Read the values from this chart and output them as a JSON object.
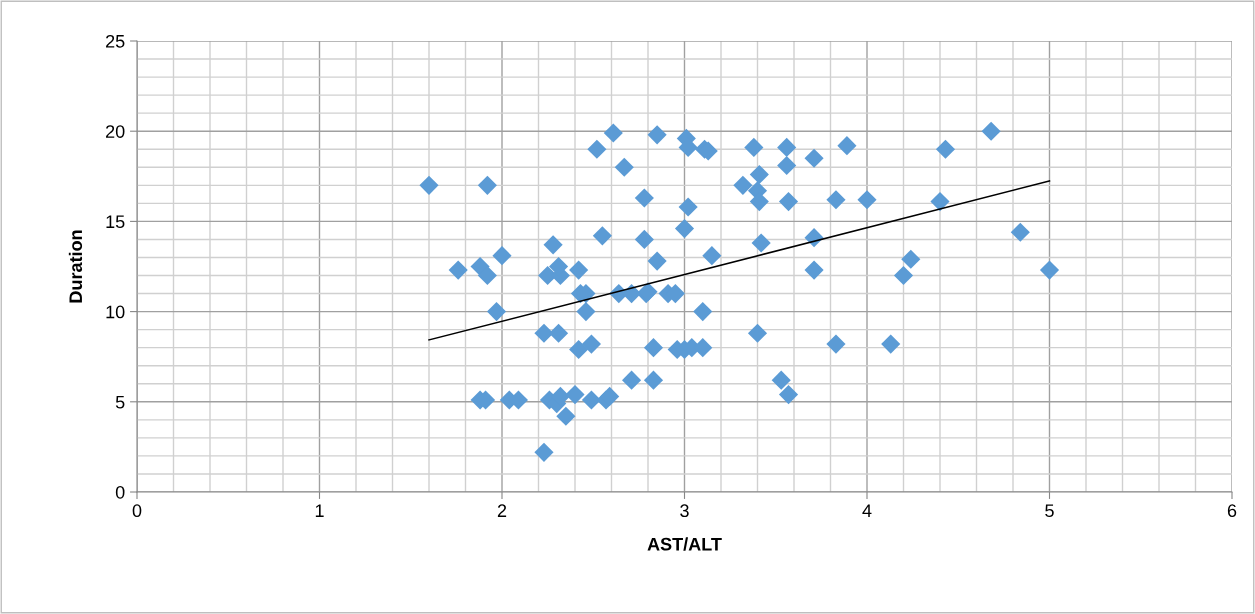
{
  "chart_data": {
    "type": "scatter",
    "xlabel": "AST/ALT",
    "ylabel": "Duration",
    "xlim": [
      0,
      6
    ],
    "ylim": [
      0,
      25
    ],
    "xticks": [
      0,
      1,
      2,
      3,
      4,
      5,
      6
    ],
    "yticks": [
      0,
      5,
      10,
      15,
      20,
      25
    ],
    "grid": true,
    "legend": false,
    "series": [
      {
        "color": "#5b9bd5",
        "marker": "diamond",
        "x": [
          1.6,
          1.76,
          1.92,
          1.88,
          1.92,
          2.0,
          1.97,
          1.88,
          1.91,
          2.04,
          2.09,
          2.23,
          2.23,
          2.28,
          2.25,
          2.32,
          2.31,
          2.31,
          2.26,
          2.3,
          2.32,
          2.4,
          2.35,
          2.42,
          2.42,
          2.43,
          2.46,
          2.46,
          2.49,
          2.49,
          2.52,
          2.55,
          2.57,
          2.59,
          2.61,
          2.64,
          2.67,
          2.71,
          2.71,
          2.78,
          2.78,
          2.79,
          2.8,
          2.83,
          2.83,
          2.85,
          2.85,
          2.91,
          2.95,
          2.96,
          3.0,
          3.0,
          3.02,
          3.01,
          3.02,
          3.04,
          3.1,
          3.1,
          3.11,
          3.13,
          3.15,
          3.32,
          3.38,
          3.4,
          3.41,
          3.41,
          3.42,
          3.4,
          3.56,
          3.56,
          3.57,
          3.53,
          3.57,
          3.71,
          3.71,
          3.71,
          3.83,
          3.83,
          3.89,
          4.0,
          4.13,
          4.2,
          4.24,
          4.4,
          4.43,
          4.68,
          4.84,
          5.0
        ],
        "values": [
          17.0,
          12.3,
          17.0,
          12.5,
          12.0,
          13.1,
          10.0,
          5.1,
          5.1,
          5.1,
          5.1,
          2.2,
          8.8,
          13.7,
          12.0,
          12.0,
          12.5,
          8.8,
          5.1,
          4.9,
          5.3,
          5.4,
          4.2,
          7.9,
          12.3,
          11.0,
          11.0,
          10.0,
          8.2,
          5.1,
          19.0,
          14.2,
          5.1,
          5.3,
          19.9,
          11.0,
          18.0,
          6.2,
          11.0,
          16.3,
          14.0,
          11.0,
          11.1,
          8.0,
          6.2,
          19.8,
          12.8,
          11.0,
          11.0,
          7.9,
          7.9,
          14.6,
          15.8,
          19.6,
          19.1,
          8.0,
          10.0,
          8.0,
          19.0,
          18.9,
          13.1,
          17.0,
          19.1,
          16.7,
          17.6,
          16.1,
          13.8,
          8.8,
          19.1,
          18.1,
          16.1,
          6.2,
          5.4,
          18.5,
          14.1,
          12.3,
          16.2,
          8.2,
          19.2,
          16.2,
          8.2,
          12.0,
          12.9,
          16.1,
          19.0,
          20.0,
          14.4,
          12.3
        ]
      },
      {
        "type": "line",
        "color": "#000000",
        "marker": "none",
        "line_style": "solid",
        "x": [
          1.6,
          5.0
        ],
        "values": [
          8.43,
          17.24
        ]
      }
    ]
  }
}
